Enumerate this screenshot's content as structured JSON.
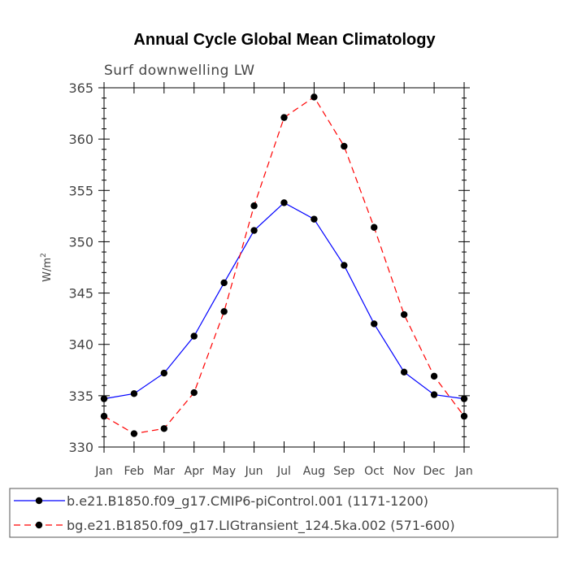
{
  "chart_data": {
    "type": "line",
    "title": "Annual Cycle Global Mean Climatology",
    "subtitle": "Surf downwelling LW",
    "ylabel": "W/m",
    "ylabel_sup": "2",
    "xlabel": "",
    "ylim": [
      330,
      365
    ],
    "y_ticks": [
      330,
      335,
      340,
      345,
      350,
      355,
      360,
      365
    ],
    "y_tick_labels": [
      "330",
      "335",
      "340",
      "345",
      "350",
      "355",
      "360",
      "365"
    ],
    "categories": [
      "Jan",
      "Feb",
      "Mar",
      "Apr",
      "May",
      "Jun",
      "Jul",
      "Aug",
      "Sep",
      "Oct",
      "Nov",
      "Dec",
      "Jan"
    ],
    "grid": false,
    "legend_position": "bottom",
    "series": [
      {
        "name": "b.e21.B1850.f09_g17.CMIP6-piControl.001 (1171-1200)",
        "color": "#0000ff",
        "line_style": "solid",
        "marker": "filled-circle",
        "values": [
          334.7,
          335.2,
          337.2,
          340.8,
          346.0,
          351.1,
          353.8,
          352.2,
          347.7,
          342.0,
          337.3,
          335.1,
          334.7
        ]
      },
      {
        "name": "bg.e21.B1850.f09_g17.LIGtransient_124.5ka.002 (571-600)",
        "color": "#ff0000",
        "line_style": "dashed",
        "marker": "filled-circle",
        "values": [
          333.0,
          331.3,
          331.8,
          335.3,
          343.2,
          353.5,
          362.1,
          364.1,
          359.3,
          351.4,
          342.9,
          336.9,
          333.0
        ]
      }
    ]
  }
}
